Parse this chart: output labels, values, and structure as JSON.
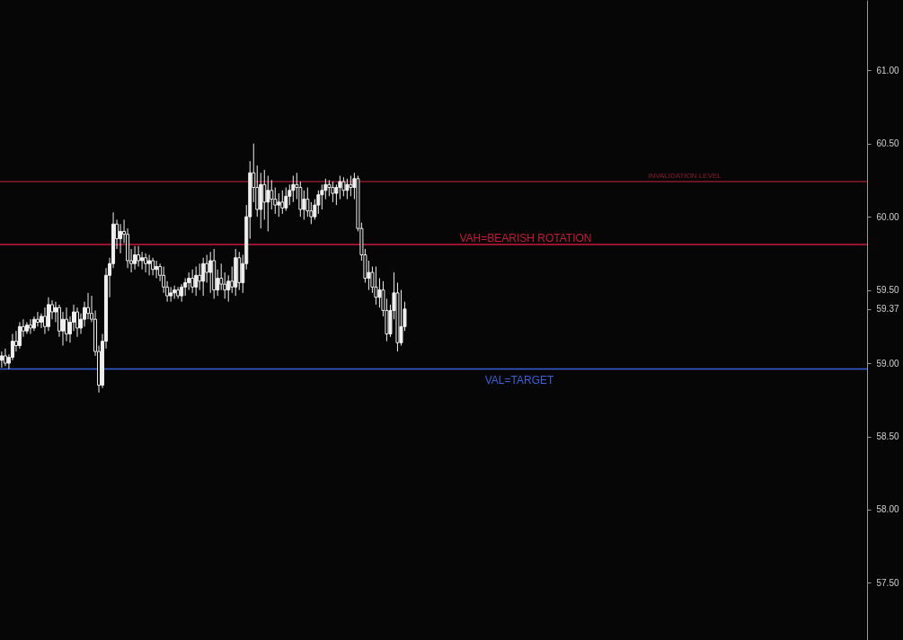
{
  "chart_data": {
    "type": "candlestick",
    "categories": [
      null,
      null,
      null,
      null,
      null,
      null,
      null,
      null,
      null,
      null,
      null,
      null,
      null,
      null,
      null,
      null,
      null,
      null,
      null,
      null,
      null,
      null,
      null,
      null,
      null,
      null,
      null,
      null,
      null,
      null,
      null,
      null,
      null,
      null,
      null,
      null,
      null,
      null,
      null,
      null,
      null,
      null,
      null,
      null,
      null,
      null,
      null,
      null,
      null,
      null,
      null,
      null,
      null,
      null,
      null,
      null,
      null,
      null,
      null,
      null,
      null,
      null,
      null,
      null,
      null,
      null,
      null,
      null,
      null,
      null,
      null,
      null,
      null,
      null,
      null,
      null,
      null,
      null,
      null,
      null,
      null,
      null,
      null,
      null,
      null,
      null,
      null,
      null,
      null,
      null,
      null,
      null,
      null,
      null,
      null,
      null,
      null,
      null,
      null,
      null,
      null,
      null,
      null,
      null,
      null,
      null,
      null,
      null,
      null,
      null,
      null,
      null,
      null,
      null,
      null,
      null,
      null,
      null,
      null,
      null,
      null,
      null,
      null,
      null,
      null,
      null,
      null,
      null,
      null,
      null,
      null,
      null,
      null,
      null,
      null,
      null,
      null,
      null,
      null,
      null,
      null,
      null,
      null,
      null,
      null,
      null,
      null,
      null,
      null,
      null,
      null,
      null,
      null,
      null,
      null,
      null,
      null,
      null,
      null,
      null,
      null,
      null,
      null,
      null,
      null,
      null,
      null,
      null,
      null,
      null,
      null,
      null,
      null,
      null,
      null,
      null,
      null,
      null,
      null,
      null,
      null,
      null,
      null,
      null,
      null,
      null,
      null,
      null,
      null,
      null,
      null,
      null,
      null,
      null,
      null,
      null,
      null,
      null,
      null,
      null,
      null,
      null,
      null,
      null,
      null,
      null,
      null,
      null,
      null,
      null,
      null,
      null,
      null,
      null,
      null,
      null,
      null,
      null,
      null,
      null,
      null,
      null,
      null,
      null,
      null,
      null,
      null,
      null,
      null,
      null,
      null,
      null,
      null,
      null,
      null,
      null,
      null,
      null,
      null,
      null,
      null
    ],
    "color": "#f0f0f0",
    "ohlc": [
      [
        59.02,
        59.08,
        58.97,
        59.05
      ],
      [
        59.05,
        59.1,
        58.98,
        59.0
      ],
      [
        59.0,
        59.06,
        58.96,
        59.04
      ],
      [
        59.04,
        59.2,
        59.02,
        59.15
      ],
      [
        59.15,
        59.22,
        59.08,
        59.12
      ],
      [
        59.12,
        59.28,
        59.1,
        59.25
      ],
      [
        59.25,
        59.3,
        59.18,
        59.22
      ],
      [
        59.22,
        59.28,
        59.2,
        59.26
      ],
      [
        59.26,
        59.3,
        59.2,
        59.24
      ],
      [
        59.24,
        59.32,
        59.22,
        59.3
      ],
      [
        59.3,
        59.35,
        59.25,
        59.28
      ],
      [
        59.28,
        59.34,
        59.24,
        59.32
      ],
      [
        59.32,
        59.38,
        59.2,
        59.25
      ],
      [
        59.25,
        59.45,
        59.22,
        59.4
      ],
      [
        59.4,
        59.43,
        59.3,
        59.35
      ],
      [
        59.35,
        59.42,
        59.28,
        59.38
      ],
      [
        59.38,
        59.4,
        59.18,
        59.22
      ],
      [
        59.22,
        59.35,
        59.12,
        59.3
      ],
      [
        59.3,
        59.38,
        59.15,
        59.2
      ],
      [
        59.2,
        59.32,
        59.14,
        59.28
      ],
      [
        59.28,
        59.4,
        59.22,
        59.35
      ],
      [
        59.35,
        59.38,
        59.18,
        59.24
      ],
      [
        59.24,
        59.34,
        59.2,
        59.3
      ],
      [
        59.3,
        59.42,
        59.25,
        59.38
      ],
      [
        59.38,
        59.48,
        59.3,
        59.34
      ],
      [
        59.34,
        59.46,
        59.28,
        59.3
      ],
      [
        59.3,
        59.36,
        59.05,
        59.08
      ],
      [
        59.08,
        59.12,
        58.8,
        58.85
      ],
      [
        58.85,
        59.2,
        58.83,
        59.15
      ],
      [
        59.15,
        59.65,
        59.1,
        59.6
      ],
      [
        59.6,
        59.72,
        59.45,
        59.68
      ],
      [
        59.68,
        60.03,
        59.65,
        59.95
      ],
      [
        59.95,
        59.98,
        59.78,
        59.85
      ],
      [
        59.85,
        59.95,
        59.75,
        59.9
      ],
      [
        59.9,
        59.98,
        59.82,
        59.88
      ],
      [
        59.88,
        59.92,
        59.65,
        59.7
      ],
      [
        59.7,
        59.78,
        59.62,
        59.68
      ],
      [
        59.68,
        59.8,
        59.64,
        59.74
      ],
      [
        59.74,
        59.8,
        59.66,
        59.7
      ],
      [
        59.7,
        59.76,
        59.64,
        59.72
      ],
      [
        59.72,
        59.75,
        59.62,
        59.68
      ],
      [
        59.68,
        59.74,
        59.6,
        59.7
      ],
      [
        59.7,
        59.72,
        59.6,
        59.64
      ],
      [
        59.64,
        59.7,
        59.58,
        59.66
      ],
      [
        59.66,
        59.68,
        59.56,
        59.6
      ],
      [
        59.6,
        59.66,
        59.48,
        59.52
      ],
      [
        59.52,
        59.56,
        59.42,
        59.46
      ],
      [
        59.46,
        59.52,
        59.42,
        59.48
      ],
      [
        59.48,
        59.53,
        59.44,
        59.5
      ],
      [
        59.5,
        59.52,
        59.44,
        59.46
      ],
      [
        59.46,
        59.54,
        59.42,
        59.52
      ],
      [
        59.52,
        59.58,
        59.46,
        59.55
      ],
      [
        59.55,
        59.62,
        59.5,
        59.58
      ],
      [
        59.58,
        59.64,
        59.48,
        59.52
      ],
      [
        59.52,
        59.66,
        59.46,
        59.6
      ],
      [
        59.6,
        59.68,
        59.5,
        59.56
      ],
      [
        59.56,
        59.72,
        59.46,
        59.68
      ],
      [
        59.68,
        59.74,
        59.55,
        59.62
      ],
      [
        59.62,
        59.76,
        59.48,
        59.7
      ],
      [
        59.7,
        59.78,
        59.44,
        59.5
      ],
      [
        59.5,
        59.64,
        59.46,
        59.58
      ],
      [
        59.58,
        59.68,
        59.5,
        59.54
      ],
      [
        59.54,
        59.62,
        59.44,
        59.5
      ],
      [
        59.5,
        59.6,
        59.42,
        59.56
      ],
      [
        59.56,
        59.66,
        59.48,
        59.52
      ],
      [
        59.52,
        59.78,
        59.46,
        59.72
      ],
      [
        59.72,
        59.76,
        59.5,
        59.55
      ],
      [
        59.55,
        59.74,
        59.48,
        59.68
      ],
      [
        59.68,
        60.08,
        59.64,
        60.0
      ],
      [
        60.0,
        60.38,
        59.85,
        60.3
      ],
      [
        60.3,
        60.5,
        60.1,
        60.2
      ],
      [
        60.2,
        60.35,
        60.0,
        60.05
      ],
      [
        60.05,
        60.3,
        59.92,
        60.22
      ],
      [
        60.22,
        60.32,
        59.98,
        60.1
      ],
      [
        60.1,
        60.28,
        59.9,
        60.18
      ],
      [
        60.18,
        60.25,
        60.05,
        60.12
      ],
      [
        60.12,
        60.2,
        60.02,
        60.08
      ],
      [
        60.08,
        60.16,
        60.0,
        60.1
      ],
      [
        60.1,
        60.18,
        60.02,
        60.06
      ],
      [
        60.06,
        60.2,
        60.04,
        60.14
      ],
      [
        60.14,
        60.22,
        60.08,
        60.18
      ],
      [
        60.18,
        60.28,
        60.1,
        60.22
      ],
      [
        60.22,
        60.3,
        60.12,
        60.2
      ],
      [
        60.2,
        60.24,
        60.0,
        60.05
      ],
      [
        60.05,
        60.18,
        59.98,
        60.12
      ],
      [
        60.12,
        60.2,
        60.0,
        60.04
      ],
      [
        60.04,
        60.1,
        59.95,
        60.0
      ],
      [
        60.0,
        60.12,
        59.98,
        60.08
      ],
      [
        60.08,
        60.18,
        60.02,
        60.15
      ],
      [
        60.15,
        60.22,
        60.05,
        60.18
      ],
      [
        60.18,
        60.26,
        60.12,
        60.22
      ],
      [
        60.22,
        60.25,
        60.14,
        60.2
      ],
      [
        60.2,
        60.24,
        60.1,
        60.16
      ],
      [
        60.16,
        60.22,
        60.08,
        60.2
      ],
      [
        60.2,
        60.28,
        60.12,
        60.24
      ],
      [
        60.24,
        60.27,
        60.14,
        60.18
      ],
      [
        60.18,
        60.26,
        60.12,
        60.22
      ],
      [
        60.22,
        60.28,
        60.14,
        60.2
      ],
      [
        60.2,
        60.3,
        60.12,
        60.26
      ],
      [
        60.26,
        60.28,
        59.9,
        59.92
      ],
      [
        59.92,
        59.96,
        59.7,
        59.74
      ],
      [
        59.74,
        59.78,
        59.55,
        59.58
      ],
      [
        59.58,
        59.7,
        59.5,
        59.62
      ],
      [
        59.62,
        59.66,
        59.48,
        59.52
      ],
      [
        59.52,
        59.66,
        59.4,
        59.45
      ],
      [
        59.45,
        59.58,
        59.38,
        59.5
      ],
      [
        59.5,
        59.56,
        59.32,
        59.36
      ],
      [
        59.36,
        59.44,
        59.15,
        59.2
      ],
      [
        59.2,
        59.4,
        59.18,
        59.36
      ],
      [
        59.36,
        59.62,
        59.3,
        59.48
      ],
      [
        59.48,
        59.55,
        59.08,
        59.14
      ],
      [
        59.14,
        59.5,
        59.12,
        59.25
      ],
      [
        59.25,
        59.42,
        59.22,
        59.37
      ],
      null,
      null,
      null,
      null,
      null,
      null,
      null,
      null,
      null,
      null,
      null,
      null,
      null,
      null,
      null,
      null,
      null,
      null,
      null,
      null,
      null,
      null,
      null,
      null,
      null,
      null,
      null,
      null,
      null,
      null,
      null,
      null,
      null,
      null,
      null,
      null,
      null,
      null,
      null,
      null,
      null,
      null,
      null,
      null,
      null,
      null,
      null,
      null,
      null,
      null,
      null,
      null,
      null,
      null,
      null,
      null,
      null,
      null,
      null,
      null,
      null,
      null,
      null,
      null,
      null,
      null,
      null,
      null,
      null,
      null,
      null,
      null,
      null,
      null,
      null,
      null,
      null,
      null,
      null,
      null,
      null,
      null,
      null,
      null,
      null,
      null,
      null,
      null,
      null,
      null,
      null,
      null,
      null,
      null,
      null,
      null,
      null,
      null,
      null,
      null,
      null,
      null,
      null,
      null,
      null,
      null,
      null,
      null,
      null,
      null,
      null,
      null,
      null,
      null,
      null,
      null,
      null,
      null,
      null,
      null,
      null,
      null,
      null,
      null,
      null,
      null,
      null,
      null
    ],
    "ylim": [
      57.11,
      61.48
    ],
    "yticks": [
      {
        "value": 57.5,
        "label": "57.50"
      },
      {
        "value": 58,
        "label": "58.00"
      },
      {
        "value": 58.5,
        "label": "58.50"
      },
      {
        "value": 59,
        "label": "59.00"
      },
      {
        "value": 59.37,
        "label": "59.37"
      },
      {
        "value": 59.5,
        "label": "59.50"
      },
      {
        "value": 60,
        "label": "60.00"
      },
      {
        "value": 60.5,
        "label": "60.50"
      },
      {
        "value": 61,
        "label": "61.00"
      }
    ],
    "tick_labels": "y",
    "grid": false,
    "ref_lines": [
      {
        "axis": "y",
        "value": 60.24,
        "label": "INVALIDATION LEVEL",
        "color": "#8b1a30"
      },
      {
        "axis": "y",
        "value": 59.81,
        "label": "VAH=BEARISH ROTATION",
        "color": "#c8193c"
      },
      {
        "axis": "y",
        "value": 58.96,
        "label": "VAL=TARGET",
        "color": "#3a62d6"
      }
    ]
  }
}
